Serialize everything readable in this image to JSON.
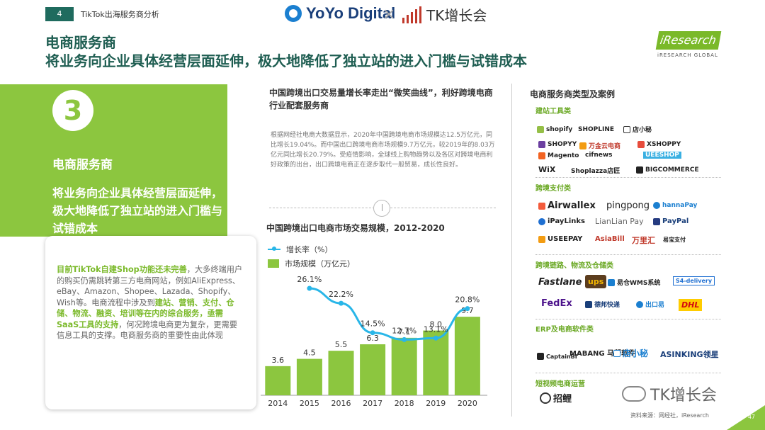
{
  "header": {
    "page_number": "4",
    "page_label": "TikTok出海服务商分析",
    "brand_left": "YoYo Digital",
    "brand_sep": "×",
    "brand_right": "TK增长会",
    "title_line1": "电商服务商",
    "title_line2": "将业务向企业具体经营层面延伸，极大地降低了独立站的进入门槛与试错成本",
    "iresearch_logo": "iResearch",
    "iresearch_sub": "iRESEARCH GLOBAL"
  },
  "left_panel": {
    "number": "3",
    "heading": "电商服务商",
    "text": "将业务向企业具体经营层面延伸，极大地降低了独立站的进入门槛与试错成本",
    "card": {
      "p1_bold": "目前TikTok自建Shop功能还未完善",
      "p2": "，大多终端用户的购买仍需跳转第三方电商网站，例如AliExpress、eBay、Amazon、Shopee、Lazada、Shopify、Wish等。电商流程中涉及到",
      "p3_bold": "建站、营销、支付、仓储、物流、融资、培训等在内的综合服务，亟需SaaS工具的支持",
      "p4": "，何况跨境电商更为复杂，更需要信息工具的支撑。电商服务商的重要性由此体现"
    }
  },
  "middle": {
    "heading": "中国跨境出口交易量增长率走出“微笑曲线”，利好跨境电商行业配套服务商",
    "paragraph": "根据网经社电商大数据显示，2020年中国跨境电商市场规模达12.5万亿元，同比增长19.04%。而中国出口跨境电商市场规模9.7万亿元，较2019年的8.03万亿元同比增长20.79%。受疫情影响，全球线上购物趋势以及各区对跨境电商利好政策的出台，出口跨境电商正在逐步取代一般贸易，成长性良好。",
    "chart_title": "中国跨境出口电商市场交易规模，2012-2020",
    "legend_line": "增长率（%）",
    "legend_bar": "市场规模（万亿元）"
  },
  "chart_data": {
    "type": "bar",
    "title": "中国跨境出口电商市场交易规模，2012-2020",
    "categories": [
      "2014",
      "2015",
      "2016",
      "2017",
      "2018",
      "2019",
      "2020"
    ],
    "series": [
      {
        "name": "市场规模（万亿元）",
        "type": "bar",
        "color": "#8cc63f",
        "values": [
          3.6,
          4.5,
          5.5,
          6.3,
          7.1,
          8.0,
          9.7
        ],
        "labels": [
          "3.6",
          "4.5",
          "5.5",
          "6.3",
          "7.1",
          "8.0",
          "9.7"
        ]
      },
      {
        "name": "增长率（%）",
        "type": "line",
        "color": "#29b6e8",
        "values": [
          26.1,
          22.2,
          14.5,
          12.7,
          13.1,
          20.8
        ],
        "x": [
          "2015",
          "2016",
          "2017",
          "2018",
          "2019",
          "2020"
        ],
        "labels": [
          "26.1%",
          "22.2%",
          "14.5%",
          "12.7%",
          "13.1%",
          "20.8%"
        ]
      }
    ],
    "bar_ylim": [
      0,
      14
    ],
    "line_ylim": [
      0,
      30
    ],
    "legend": "top-left",
    "grid": false
  },
  "right": {
    "heading": "电商服务商类型及案例",
    "sections": [
      {
        "title": "建站工具类"
      },
      {
        "title": "跨境支付类"
      },
      {
        "title": "跨境链路、物流及仓储类"
      },
      {
        "title": "ERP及电商软件类"
      },
      {
        "title": "短视频电商运营"
      }
    ],
    "logos": {
      "shopify": "shopify",
      "shopline": "SHOPLINE",
      "dianxiaomi": "店小秘",
      "shopyy": "SHOPYY",
      "wanjinyun": "万金云电商",
      "xshoppy": "XSHOPPY",
      "magento": "Magento",
      "cifnews": "cifnews",
      "ueeshop": "UEESHOP",
      "wix": "WiX",
      "shoplazza": "Shoplazza店匠",
      "bigcommerce": "BIGCOMMERCE",
      "airwallex": "Airwallex",
      "pingpong": "pingpong",
      "hannapay": "hannaPay",
      "ipaylinks": "iPayLinks",
      "lianlianpay": "LianLian Pay",
      "paypal": "PayPal",
      "useepay": "USEEPAY",
      "asiabill": "AsiaBill",
      "wanlihui": "万里汇",
      "yishoubao": "易宝支付",
      "fastlane": "Fastlane",
      "ups": "ups",
      "yicang": "易仓WMS系统",
      "s4delivery": "S4-delivery",
      "fedex": "FedEx",
      "debang": "德邦快递",
      "chukouyi": "出口易",
      "dhl": "DHL",
      "captainbi": "CaptainBI",
      "mabang": "MABANG 马帮软件",
      "dianxiaomi2": "店小秘",
      "asinking": "ASINKING领星",
      "zhaoli": "招鲤"
    }
  },
  "footer": {
    "wechat": "TK增长会",
    "source": "资料来源：网经社，iResearch",
    "slide_no": "47"
  }
}
